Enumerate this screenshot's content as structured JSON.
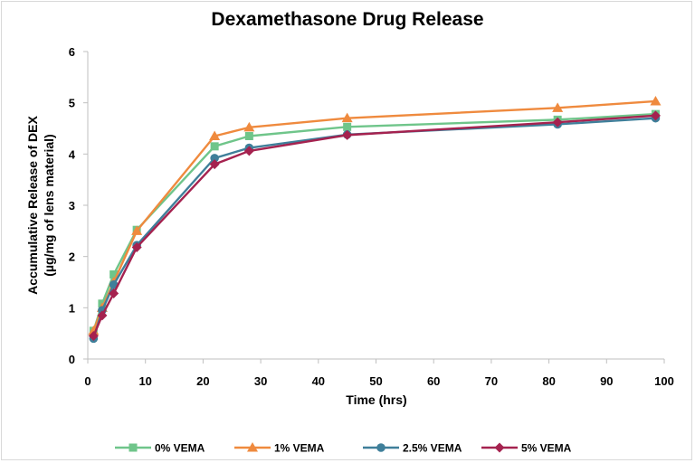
{
  "chart_data": {
    "type": "line",
    "title": "Dexamethasone Drug Release",
    "xlabel": "Time (hrs)",
    "ylabel_line1": "Accumulative Release of DEX",
    "ylabel_line2": "(µg/mg of lens material)",
    "xlim": [
      0,
      100
    ],
    "ylim": [
      0,
      6
    ],
    "xticks": [
      0,
      10,
      20,
      30,
      40,
      50,
      60,
      70,
      80,
      90,
      100
    ],
    "yticks": [
      0,
      1,
      2,
      3,
      4,
      5,
      6
    ],
    "grid": false,
    "legend_position": "bottom",
    "series": [
      {
        "name": "0% VEMA",
        "color": "#6fc58a",
        "marker": "square",
        "x": [
          1,
          2.5,
          4.5,
          8.5,
          22,
          28,
          45,
          81.5,
          98.5
        ],
        "y": [
          0.55,
          1.08,
          1.65,
          2.52,
          4.15,
          4.35,
          4.53,
          4.67,
          4.78
        ]
      },
      {
        "name": "1% VEMA",
        "color": "#ef8a3e",
        "marker": "triangle",
        "x": [
          1,
          2.5,
          4.5,
          8.5,
          22,
          28,
          45,
          81.5,
          98.5
        ],
        "y": [
          0.55,
          1.0,
          1.5,
          2.5,
          4.35,
          4.52,
          4.7,
          4.9,
          5.03
        ]
      },
      {
        "name": "2.5% VEMA",
        "color": "#3f7f9a",
        "marker": "circle",
        "x": [
          1,
          2.5,
          4.5,
          8.5,
          22,
          28,
          45,
          81.5,
          98.5
        ],
        "y": [
          0.4,
          0.95,
          1.45,
          2.22,
          3.92,
          4.12,
          4.38,
          4.58,
          4.7
        ]
      },
      {
        "name": "5% VEMA",
        "color": "#a5224f",
        "marker": "diamond",
        "x": [
          1,
          2.5,
          4.5,
          8.5,
          22,
          28,
          45,
          81.5,
          98.5
        ],
        "y": [
          0.45,
          0.85,
          1.28,
          2.18,
          3.8,
          4.06,
          4.37,
          4.62,
          4.75
        ]
      }
    ]
  }
}
